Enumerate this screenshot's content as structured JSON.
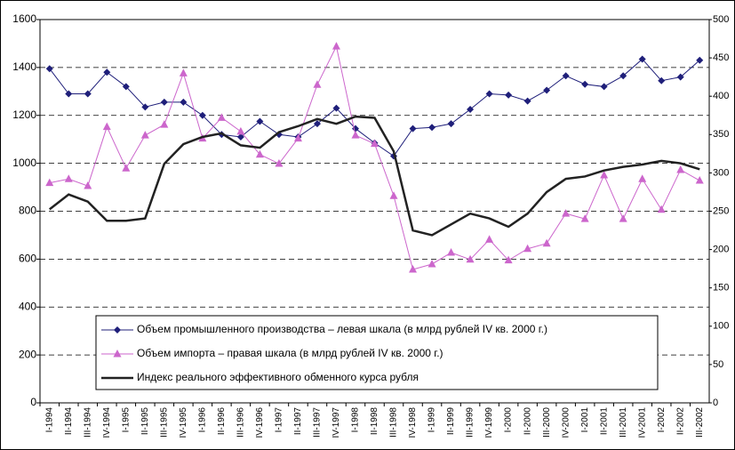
{
  "chart_data": {
    "type": "line",
    "categories": [
      "I-1994",
      "II-1994",
      "III-1994",
      "IV-1994",
      "I-1995",
      "II-1995",
      "III-1995",
      "IV-1995",
      "I-1996",
      "II-1996",
      "III-1996",
      "IV-1996",
      "I-1997",
      "II-1997",
      "III-1997",
      "IV-1997",
      "I-1998",
      "II-1998",
      "III-1998",
      "IV-1998",
      "I-1999",
      "II-1999",
      "III-1999",
      "IV-1999",
      "I-2000",
      "II-2000",
      "III-2000",
      "IV-2000",
      "I-2001",
      "II-2001",
      "III-2001",
      "IV-2001",
      "I-2002",
      "II-2002",
      "III-2002"
    ],
    "series": [
      {
        "name": "Объем промышленного производства – левая шкала (в млрд рублей IV кв. 2000 г.)",
        "color": "#1f1f7a",
        "marker": "diamond",
        "values": [
          1395,
          1290,
          1290,
          1380,
          1320,
          1235,
          1255,
          1255,
          1200,
          1120,
          1110,
          1175,
          1120,
          1110,
          1165,
          1230,
          1145,
          1085,
          1030,
          1145,
          1150,
          1165,
          1225,
          1290,
          1285,
          1260,
          1305,
          1365,
          1330,
          1320,
          1365,
          1435,
          1345,
          1360,
          1430
        ]
      },
      {
        "name": "Объем импорта – правая шкала (в млрд рублей IV кв. 2000 г.)",
        "color": "#cc66cc",
        "marker": "triangle",
        "axis": "y2",
        "values": [
          287,
          292,
          283,
          360,
          306,
          349,
          363,
          430,
          345,
          372,
          354,
          324,
          312,
          345,
          415,
          465,
          349,
          338,
          270,
          174,
          181,
          196,
          187,
          213,
          186,
          201,
          208,
          247,
          240,
          297,
          240,
          292,
          252,
          304,
          290
        ]
      },
      {
        "name": "Индекс реального эффективного обменного курса рубля",
        "color": "#222222",
        "marker": "none",
        "values": [
          808,
          870,
          840,
          760,
          760,
          770,
          998,
          1080,
          1110,
          1125,
          1075,
          1065,
          1130,
          1155,
          1185,
          1165,
          1195,
          1190,
          1050,
          720,
          700,
          745,
          790,
          770,
          735,
          790,
          880,
          935,
          945,
          970,
          985,
          995,
          1010,
          1000,
          975
        ]
      }
    ],
    "ylim": [
      0,
      1600
    ],
    "yticks": [
      0,
      200,
      400,
      600,
      800,
      1000,
      1200,
      1400,
      1600
    ],
    "y2lim": [
      0,
      500
    ],
    "y2ticks": [
      0,
      50,
      100,
      150,
      200,
      250,
      300,
      350,
      400,
      450,
      500
    ],
    "grid": true
  }
}
